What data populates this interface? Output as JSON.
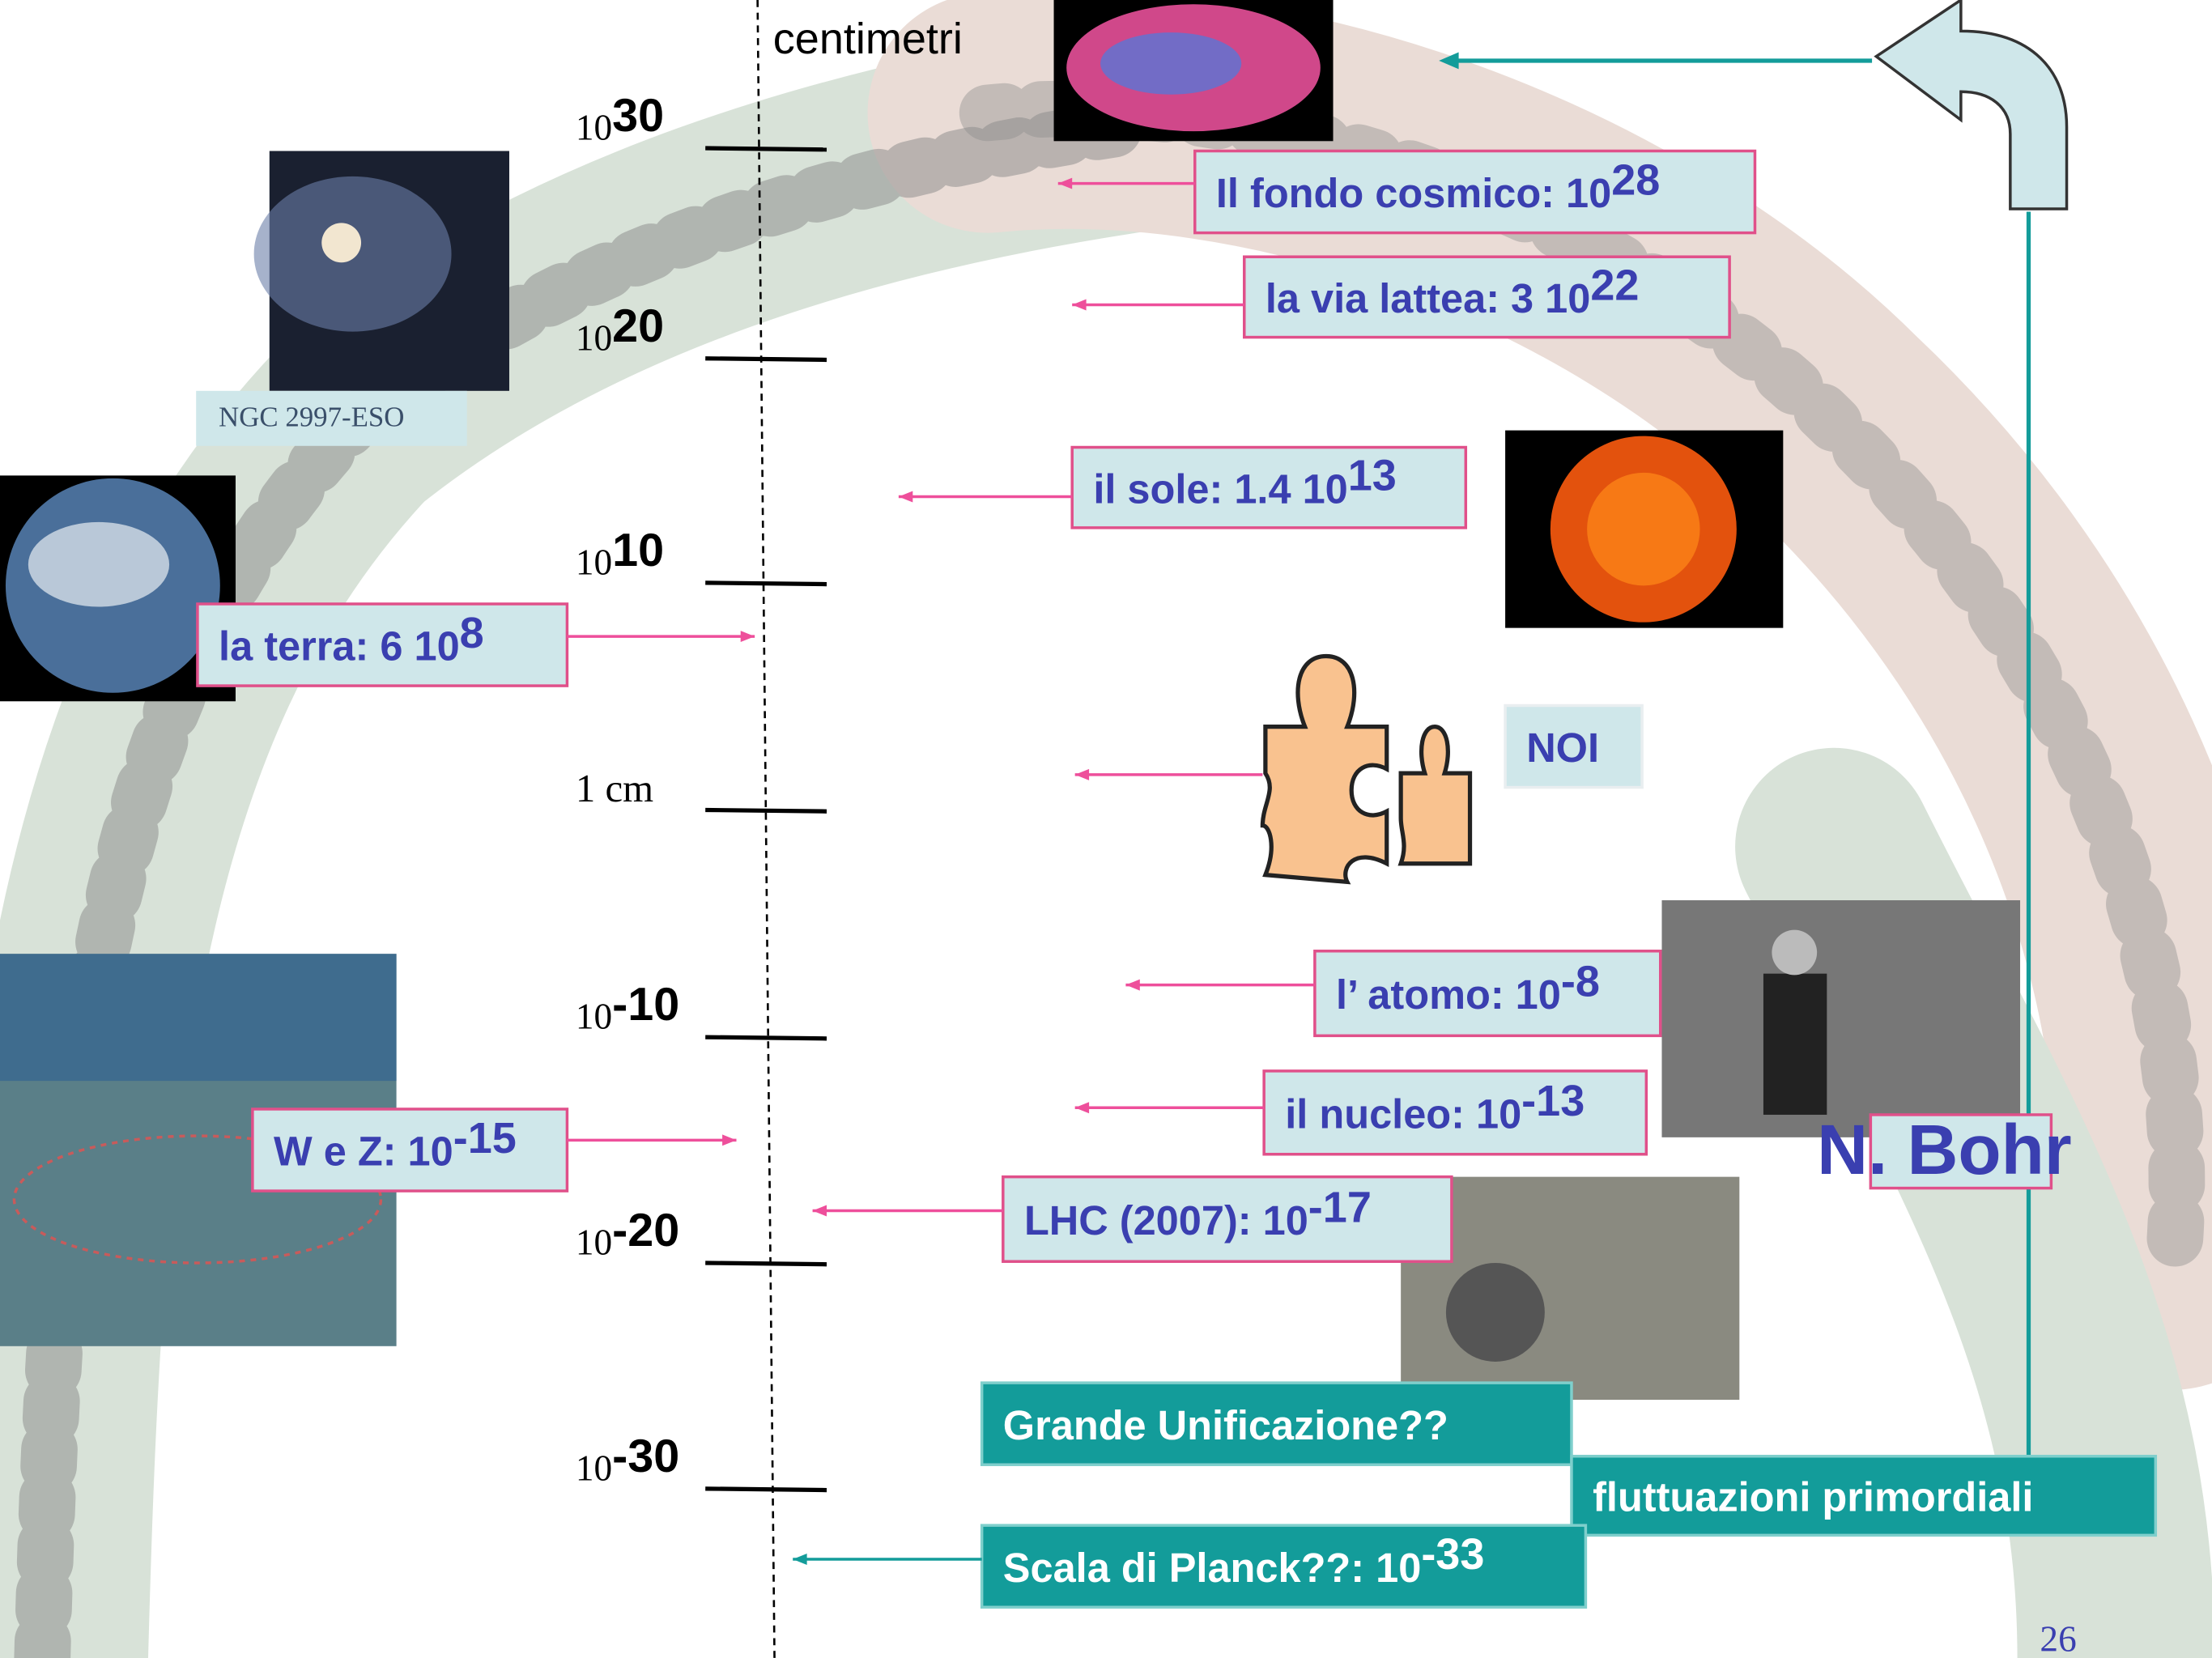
{
  "header": {
    "unit_label": "centimetri"
  },
  "scale": {
    "ticks": [
      {
        "base": "10",
        "exponent": "30"
      },
      {
        "base": "10",
        "exponent": "20"
      },
      {
        "base": "10",
        "exponent": "10"
      },
      {
        "label": "1 cm"
      },
      {
        "base": "10",
        "exponent": "-10"
      },
      {
        "base": "10",
        "exponent": "-20"
      },
      {
        "base": "10",
        "exponent": "-30"
      }
    ]
  },
  "annotations": [
    {
      "text": "Il fondo cosmico: 10",
      "sup": "28"
    },
    {
      "text": "la via lattea: 3 10",
      "sup": "22"
    },
    {
      "text": "il sole: 1.4 10",
      "sup": "13"
    },
    {
      "text": "la terra: 6 10",
      "sup": "8"
    },
    {
      "text": "NOI"
    },
    {
      "text": "l’ atomo: 10",
      "sup": "-8"
    },
    {
      "text": "il nucleo: 10",
      "sup": "-13"
    },
    {
      "text": "W e Z: 10",
      "sup": "-15"
    },
    {
      "text": "LHC (2007): 10",
      "sup": "-17"
    },
    {
      "text": "Grande Unificazione??"
    },
    {
      "text": "fluttuazioni primordiali"
    },
    {
      "text": "Scala di Planck??: 10",
      "sup": "-33"
    }
  ],
  "image_captions": {
    "galaxy": "NGC 2997-ESO",
    "bohr": "N. Bohr"
  },
  "page_number": "26"
}
